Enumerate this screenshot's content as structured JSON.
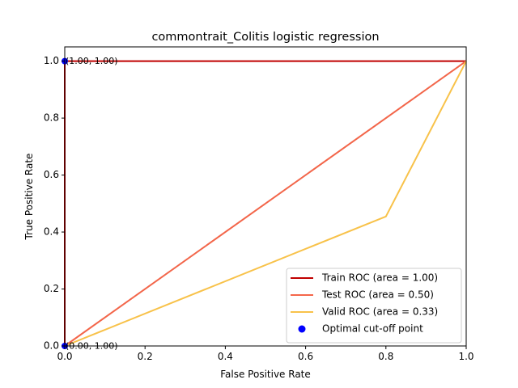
{
  "chart_data": {
    "type": "line",
    "title": "commontrait_Colitis logistic regression",
    "xlabel": "False Positive Rate",
    "ylabel": "True Positive Rate",
    "xlim": [
      0,
      1
    ],
    "ylim": [
      0,
      1.05
    ],
    "xticks": [
      "0.0",
      "0.2",
      "0.4",
      "0.6",
      "0.8",
      "1.0"
    ],
    "yticks": [
      "0.0",
      "0.2",
      "0.4",
      "0.6",
      "0.8",
      "1.0"
    ],
    "grid": false,
    "legend_position": "lower-right",
    "diagonal": {
      "x": [
        0,
        1
      ],
      "y": [
        0,
        1
      ],
      "style": "dashed",
      "color": "#000000"
    },
    "series": [
      {
        "name": "Train ROC (area = 1.00)",
        "color": "#c00000",
        "x": [
          0,
          0,
          1
        ],
        "y": [
          0,
          1,
          1
        ]
      },
      {
        "name": "Test ROC (area = 0.50)",
        "color": "#f4664a",
        "x": [
          0,
          1
        ],
        "y": [
          0,
          1
        ]
      },
      {
        "name": "Valid ROC (area = 0.33)",
        "color": "#f8c24a",
        "x": [
          0,
          0.8,
          1
        ],
        "y": [
          0,
          0.4545,
          1
        ]
      }
    ],
    "optimal_points": {
      "name": "Optimal cut-off point",
      "color": "#0000ff",
      "points": [
        {
          "x": 0,
          "y": 1
        },
        {
          "x": 0,
          "y": 0
        }
      ]
    },
    "annotations": [
      {
        "text": "(1.00, 1.00)",
        "x": 0,
        "y": 1
      },
      {
        "text": "(0.00, 1.00)",
        "x": 0,
        "y": 0
      }
    ]
  }
}
